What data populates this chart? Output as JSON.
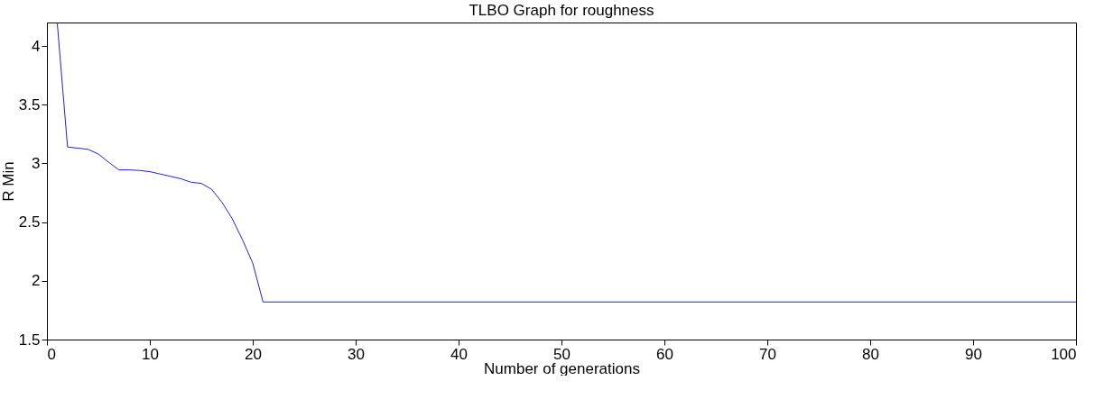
{
  "chart_data": {
    "type": "line",
    "title": "TLBO Graph for roughness",
    "xlabel": "Number of generations",
    "ylabel": "R Min",
    "x": [
      1,
      2,
      3,
      4,
      5,
      6,
      7,
      8,
      9,
      10,
      11,
      12,
      13,
      14,
      15,
      16,
      17,
      18,
      19,
      20,
      21,
      100
    ],
    "series": [
      {
        "color": "#2222cc",
        "values": [
          4.2,
          3.14,
          3.13,
          3.12,
          3.08,
          3.01,
          2.945,
          2.945,
          2.94,
          2.93,
          2.91,
          2.89,
          2.87,
          2.84,
          2.83,
          2.78,
          2.67,
          2.53,
          2.35,
          2.15,
          1.82,
          1.82
        ]
      }
    ],
    "xlim": [
      0,
      100
    ],
    "xticks": [
      0,
      10,
      20,
      30,
      40,
      50,
      60,
      70,
      80,
      90,
      100
    ],
    "ylim": [
      1.5,
      4.2
    ],
    "yticks": [
      1.5,
      2,
      2.5,
      3,
      3.5,
      4
    ],
    "grid": false,
    "legend": false,
    "marker": "none",
    "line_style": "solid"
  }
}
